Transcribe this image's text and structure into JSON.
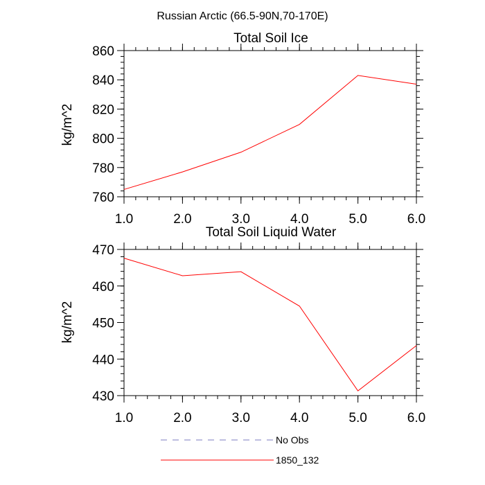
{
  "figure_title": "Russian Arctic (66.5-90N,70-170E)",
  "chart_data": [
    {
      "type": "line",
      "title": "Total Soil Ice",
      "xlabel": "",
      "ylabel": "kg/m^2",
      "xlim": [
        1.0,
        6.0
      ],
      "ylim": [
        760,
        860
      ],
      "x_ticks": [
        1.0,
        2.0,
        3.0,
        4.0,
        5.0,
        6.0
      ],
      "x_tick_labels": [
        "1.0",
        "2.0",
        "3.0",
        "4.0",
        "5.0",
        "6.0"
      ],
      "y_ticks": [
        760,
        780,
        800,
        820,
        840,
        860
      ],
      "y_tick_labels": [
        "760",
        "780",
        "800",
        "820",
        "840",
        "860"
      ],
      "grid": false,
      "series": [
        {
          "name": "1850_132",
          "color": "#ff0000",
          "style": "solid",
          "x": [
            1.0,
            2.0,
            3.0,
            4.0,
            5.0,
            6.0
          ],
          "values": [
            765.0,
            777.0,
            790.5,
            809.5,
            843.0,
            837.0
          ]
        }
      ]
    },
    {
      "type": "line",
      "title": "Total Soil Liquid Water",
      "xlabel": "",
      "ylabel": "kg/m^2",
      "xlim": [
        1.0,
        6.0
      ],
      "ylim": [
        430,
        470
      ],
      "x_ticks": [
        1.0,
        2.0,
        3.0,
        4.0,
        5.0,
        6.0
      ],
      "x_tick_labels": [
        "1.0",
        "2.0",
        "3.0",
        "4.0",
        "5.0",
        "6.0"
      ],
      "y_ticks": [
        430,
        440,
        450,
        460,
        470
      ],
      "y_tick_labels": [
        "430",
        "440",
        "450",
        "460",
        "470"
      ],
      "grid": false,
      "series": [
        {
          "name": "1850_132",
          "color": "#ff0000",
          "style": "solid",
          "x": [
            1.0,
            2.0,
            3.0,
            4.0,
            5.0,
            6.0
          ],
          "values": [
            467.6,
            462.8,
            463.9,
            454.5,
            431.3,
            443.7
          ]
        }
      ]
    }
  ],
  "legend": {
    "placement": "bottom-center",
    "entries": [
      {
        "label": "No Obs",
        "color": "#7b7bc0",
        "style": "dashed"
      },
      {
        "label": "1850_132",
        "color": "#ff0000",
        "style": "solid"
      }
    ]
  }
}
